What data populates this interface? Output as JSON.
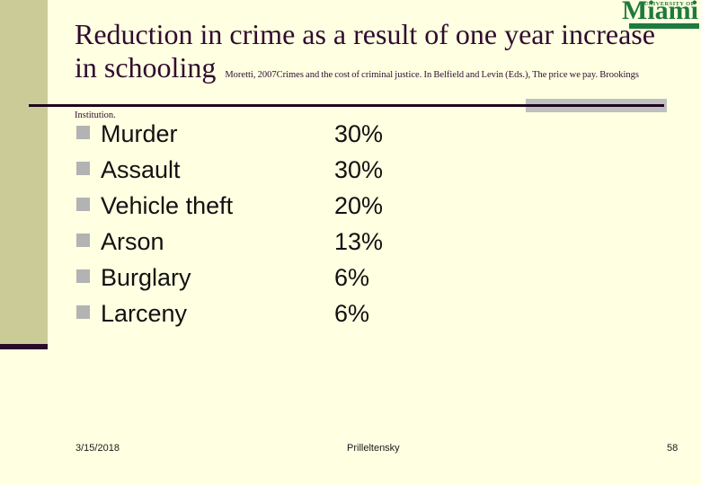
{
  "slide_title": {
    "line1": "Reduction in crime as a result of one year increase",
    "line2": "in schooling",
    "citation": "Moretti, 2007Crimes and the cost of criminal justice. In Belfield and Levin (Eds.), The price we pay. Brookings Institution."
  },
  "logo": {
    "line1": "UNIVERSITY OF",
    "line2": "Miami"
  },
  "list": [
    {
      "label": "Murder",
      "value": "30%"
    },
    {
      "label": "Assault",
      "value": "30%"
    },
    {
      "label": "Vehicle theft",
      "value": "20%"
    },
    {
      "label": "Arson",
      "value": "13%"
    },
    {
      "label": "Burglary",
      "value": "6%"
    },
    {
      "label": "Larceny",
      "value": "6%"
    }
  ],
  "footer": {
    "date": "3/15/2018",
    "author": "Prilleltensky",
    "slide_number": "58"
  },
  "colors": {
    "background": "#FFFFE1",
    "strip_olive": "#CBCB98",
    "accent_dark": "#2B092B",
    "title_text": "#300B30",
    "logo_green": "#1E7A3D",
    "bullet_gray": "#B3B3B3",
    "rule_gray": "#C0C0C0"
  }
}
